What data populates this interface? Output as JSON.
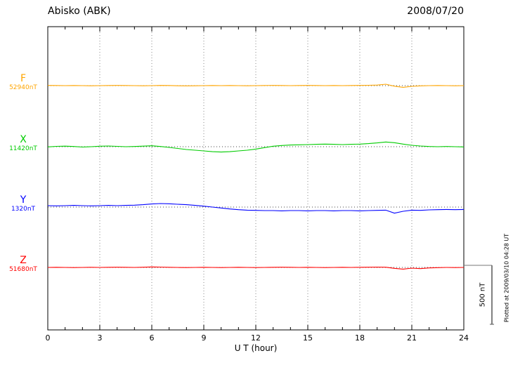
{
  "chart_data": {
    "type": "line",
    "title": "Abisko (ABK)",
    "date": "2008/07/20",
    "xlabel": "U T (hour)",
    "plotted_at": "Plotted at 2009/03/10 04:28 UT",
    "xlim": [
      0,
      24
    ],
    "x_ticks": [
      0,
      3,
      6,
      9,
      12,
      15,
      18,
      21,
      24
    ],
    "x_step_hours": 0.5,
    "grid": "dotted vertical lines every 3 hours; dotted horizontal baseline per component",
    "legend_position": "left margin, one label per trace baseline",
    "unit": "nT deviation from component baseline",
    "scale_bar": {
      "label": "500 nT",
      "nT": 500
    },
    "series": [
      {
        "name": "F",
        "baseline_label": "52940nT",
        "baseline_nT": 52940,
        "color": "#FFA500",
        "values": [
          2,
          1,
          0,
          1,
          0,
          -1,
          0,
          1,
          2,
          1,
          0,
          -1,
          0,
          2,
          1,
          -1,
          -2,
          -1,
          0,
          1,
          0,
          1,
          0,
          -1,
          0,
          1,
          2,
          1,
          0,
          1,
          2,
          1,
          0,
          1,
          0,
          1,
          2,
          3,
          5,
          12,
          -5,
          -14,
          -6,
          -2,
          0,
          1,
          0,
          -1,
          0
        ]
      },
      {
        "name": "X",
        "baseline_label": "11420nT",
        "baseline_nT": 11420,
        "color": "#00CC00",
        "values": [
          -2,
          3,
          5,
          2,
          -3,
          0,
          4,
          6,
          3,
          0,
          2,
          5,
          8,
          2,
          -6,
          -15,
          -24,
          -30,
          -36,
          -42,
          -45,
          -42,
          -36,
          -30,
          -20,
          -8,
          4,
          10,
          14,
          16,
          18,
          20,
          22,
          20,
          18,
          20,
          22,
          26,
          32,
          40,
          34,
          22,
          12,
          6,
          2,
          0,
          2,
          0,
          -2
        ]
      },
      {
        "name": "Y",
        "baseline_label": "1320nT",
        "baseline_nT": 1320,
        "color": "#0000FF",
        "values": [
          12,
          10,
          12,
          14,
          12,
          10,
          12,
          14,
          12,
          14,
          16,
          20,
          26,
          30,
          28,
          24,
          20,
          14,
          8,
          0,
          -8,
          -16,
          -22,
          -26,
          -28,
          -30,
          -30,
          -32,
          -30,
          -30,
          -32,
          -30,
          -30,
          -32,
          -30,
          -30,
          -32,
          -30,
          -28,
          -26,
          -52,
          -36,
          -26,
          -28,
          -24,
          -22,
          -20,
          -22,
          -20
        ]
      },
      {
        "name": "Z",
        "baseline_label": "51680nT",
        "baseline_nT": 51680,
        "color": "#FF0000",
        "values": [
          0,
          1,
          0,
          -1,
          0,
          1,
          0,
          1,
          2,
          1,
          0,
          2,
          4,
          3,
          1,
          0,
          -1,
          0,
          1,
          0,
          -1,
          0,
          1,
          0,
          -1,
          0,
          1,
          2,
          1,
          0,
          1,
          0,
          -1,
          0,
          1,
          0,
          1,
          2,
          3,
          2,
          -8,
          -14,
          -6,
          -10,
          -4,
          -2,
          0,
          -1,
          0
        ]
      }
    ]
  }
}
